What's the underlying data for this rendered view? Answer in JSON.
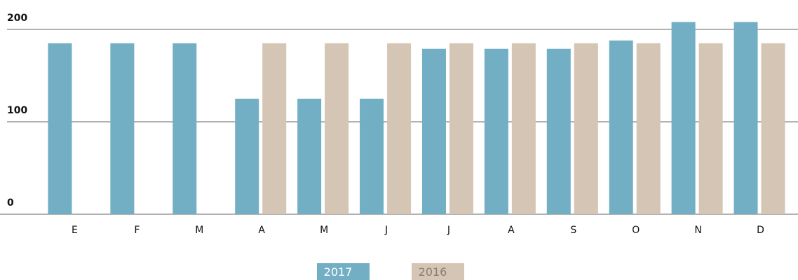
{
  "chart_data": {
    "type": "bar",
    "categories": [
      "E",
      "F",
      "M",
      "A",
      "M",
      "J",
      "J",
      "A",
      "S",
      "O",
      "N",
      "D"
    ],
    "series": [
      {
        "name": "2017",
        "color": "#72afc4",
        "values": [
          185,
          185,
          185,
          125,
          125,
          125,
          179,
          179,
          179,
          188,
          208,
          208
        ]
      },
      {
        "name": "2016",
        "color": "#d5c5b4",
        "values": [
          null,
          null,
          null,
          185,
          185,
          185,
          185,
          185,
          185,
          185,
          185,
          185
        ]
      }
    ],
    "ylim": [
      0,
      200
    ],
    "yticks": [
      0,
      100,
      200
    ],
    "grid": true,
    "legend": "bottom"
  }
}
